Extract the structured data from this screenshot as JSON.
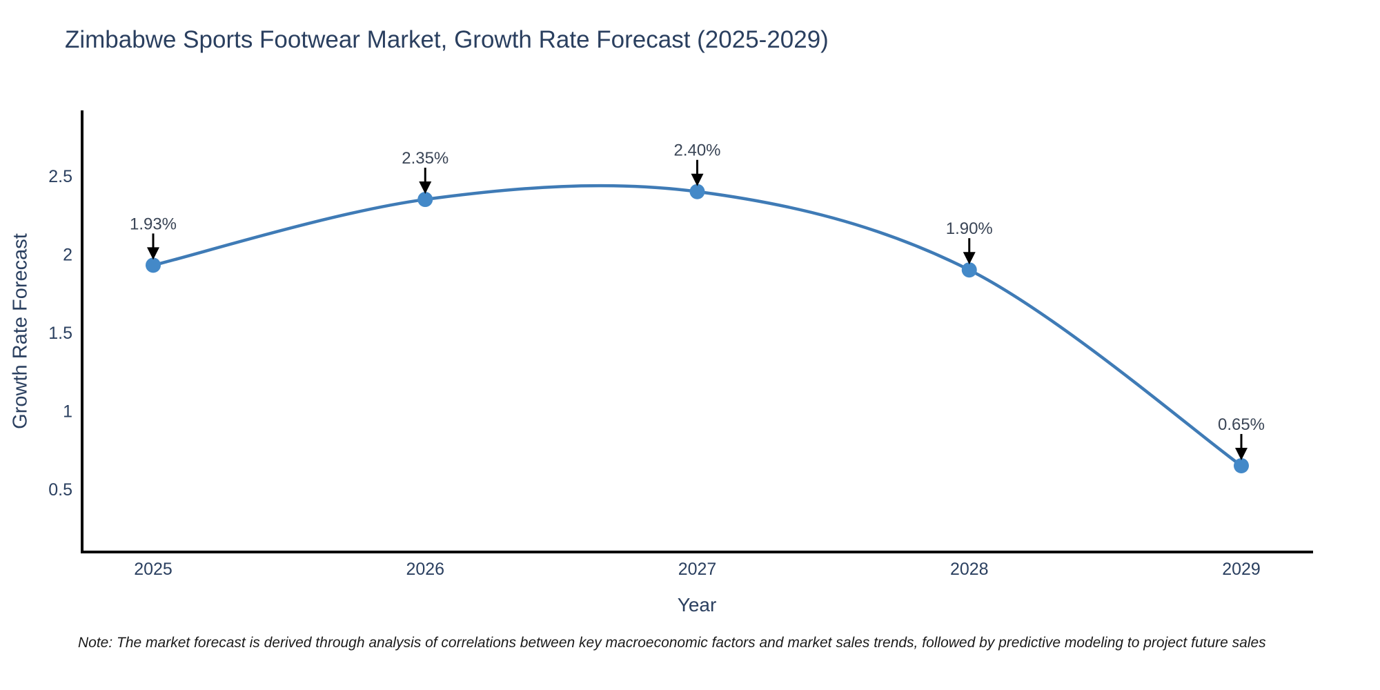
{
  "title": "Zimbabwe Sports Footwear Market, Growth Rate Forecast (2025-2029)",
  "note": "Note: The market forecast is derived through analysis of correlations between key macroeconomic factors and market sales trends, followed by predictive modeling to project future sales",
  "colors": {
    "title_text": "#2a3f5f",
    "tick_text": "#2a3f5f",
    "axis_line": "#000000",
    "line": "#3f7bb6",
    "marker": "#4489c8",
    "arrow": "#000000",
    "annotation_text": "#3a4556",
    "background": "#ffffff"
  },
  "chart_data": {
    "type": "line",
    "curve": "spline",
    "title": "Zimbabwe Sports Footwear Market, Growth Rate Forecast (2025-2029)",
    "xlabel": "Year",
    "ylabel": "Growth Rate Forecast",
    "x": [
      2025,
      2026,
      2027,
      2028,
      2029
    ],
    "values": [
      1.93,
      2.35,
      2.4,
      1.9,
      0.65
    ],
    "point_labels": [
      "1.93%",
      "2.35%",
      "2.40%",
      "1.90%",
      "0.65%"
    ],
    "x_tick_labels": [
      "2025",
      "2026",
      "2027",
      "2028",
      "2029"
    ],
    "y_tick_values": [
      0.5,
      1,
      1.5,
      2,
      2.5
    ],
    "y_tick_labels": [
      "0.5",
      "1",
      "1.5",
      "2",
      "2.5"
    ],
    "xlim": [
      2024.74,
      2029.26
    ],
    "ylim": [
      0.1,
      2.92
    ],
    "grid": false,
    "legend": false,
    "annotations": "value labels with downward arrows above each point"
  }
}
